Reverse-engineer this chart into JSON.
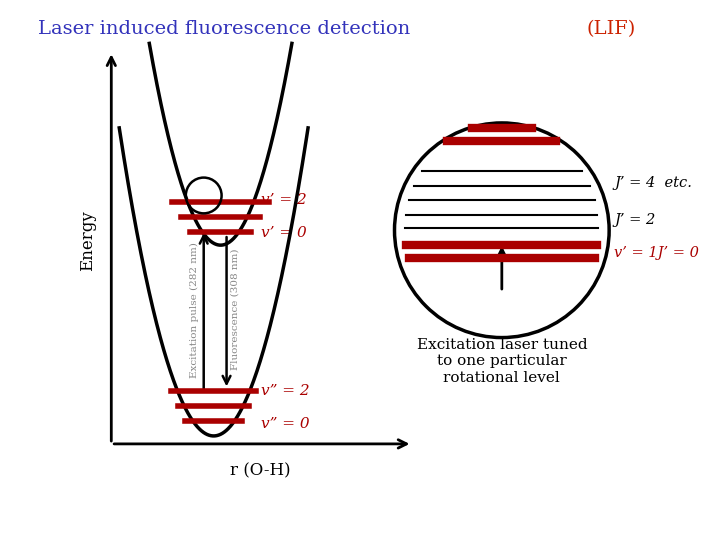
{
  "title": "Laser induced fluorescence detection",
  "title_color": "#3333bb",
  "lif_label": "(LIF)",
  "lif_color": "#cc2200",
  "background_color": "#ffffff",
  "energy_label": "Energy",
  "r_label": "r (O-H)",
  "excitation_label": "Excitation pulse (282 nm)",
  "fluorescence_label": "Fluorescence (308 nm)",
  "vp2_label": "v’ = 2",
  "vp0_label": "v’ = 0",
  "vpp2_label": "v” = 2",
  "vpp0_label": "v” = 0",
  "Jp4_label": "J’ = 4  etc.",
  "Jp2_label": "J’ = 2",
  "vp1Jp0_label": "v’ = 1J’ = 0",
  "excitation_text": "Excitation laser tuned\nto one particular\nrotational level",
  "dark_red": "#aa0000",
  "black": "#000000",
  "gray": "#888888"
}
